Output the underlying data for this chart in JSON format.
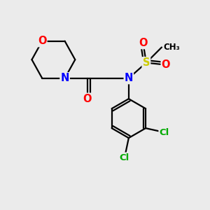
{
  "bg_color": "#ebebeb",
  "atom_colors": {
    "N": "#0000ff",
    "O": "#ff0000",
    "S": "#cccc00",
    "Cl": "#00aa00",
    "C": "#000000"
  },
  "bond_lw": 1.6,
  "font_size": 10.5
}
